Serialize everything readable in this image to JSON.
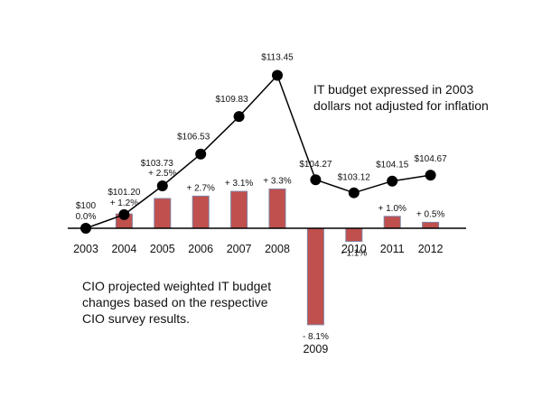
{
  "chart_data": {
    "type": "bar",
    "categories": [
      "2003",
      "2004",
      "2005",
      "2006",
      "2007",
      "2008",
      "2009",
      "2010",
      "2011",
      "2012"
    ],
    "series": [
      {
        "values": [
          0.0,
          1.2,
          2.5,
          2.7,
          3.1,
          3.3,
          -8.1,
          -1.1,
          1.0,
          0.5
        ],
        "labels": [
          "0.0%",
          "+ 1.2%",
          "+ 2.5%",
          "+ 2.7%",
          "+ 3.1%",
          "+ 3.3%",
          "- 8.1%",
          "- 1.1%",
          "+ 1.0%",
          "+ 0.5%"
        ],
        "color": "#c0504d",
        "edge_color": "#8080a0"
      },
      {
        "type": "line",
        "values": [
          100,
          101.2,
          103.73,
          106.53,
          109.83,
          113.45,
          104.27,
          103.12,
          104.15,
          104.67
        ],
        "labels": [
          "$100",
          "$101.20",
          "$103.73",
          "$106.53",
          "$109.83",
          "$113.45",
          "$104.27",
          "$103.12",
          "$104.15",
          "$104.67"
        ],
        "color": "#000000"
      }
    ],
    "annotations": [
      "IT budget expressed in 2003",
      "dollars not adjusted for inflation",
      "CIO projected weighted IT budget",
      "changes based on the respective",
      "CIO survey results."
    ],
    "grid": false
  }
}
